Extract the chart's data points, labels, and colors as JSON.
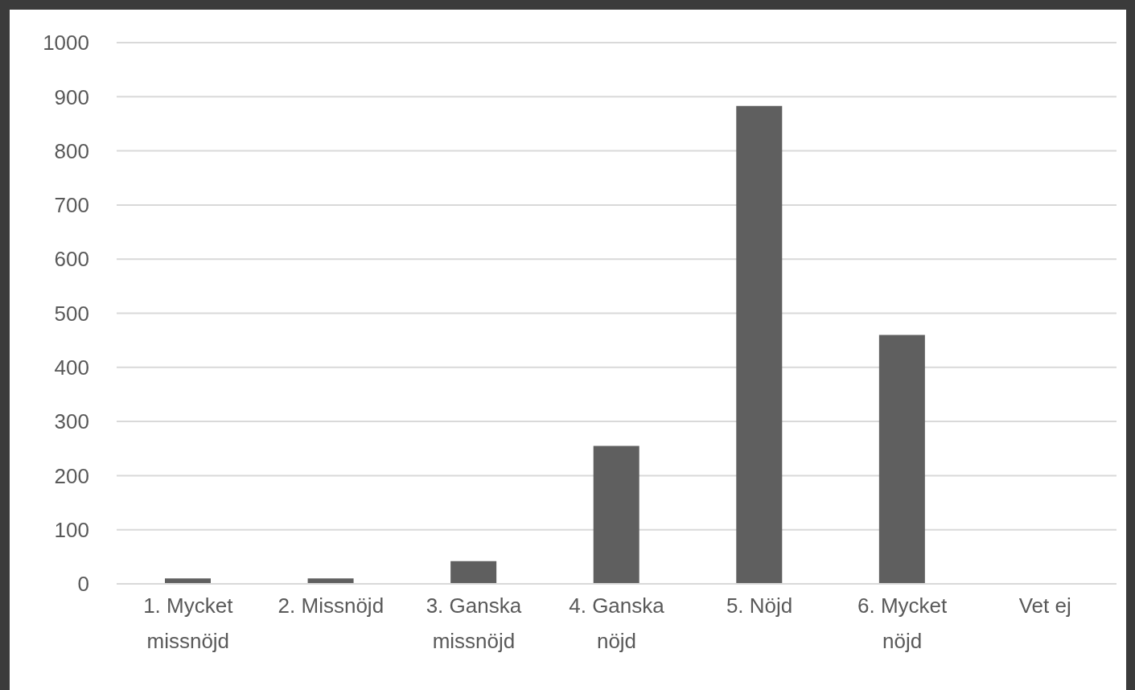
{
  "chart_data": {
    "type": "bar",
    "categories": [
      "1. Mycket missnöjd",
      "2. Missnöjd",
      "3. Ganska missnöjd",
      "4. Ganska nöjd",
      "5. Nöjd",
      "6. Mycket nöjd",
      "Vet ej"
    ],
    "values": [
      10,
      10,
      42,
      255,
      883,
      460,
      0
    ],
    "color": "#5f5f5f",
    "ylim": [
      0,
      1000
    ],
    "yticks": [
      0,
      100,
      200,
      300,
      400,
      500,
      600,
      700,
      800,
      900,
      1000
    ],
    "grid": "y",
    "legend": false
  }
}
